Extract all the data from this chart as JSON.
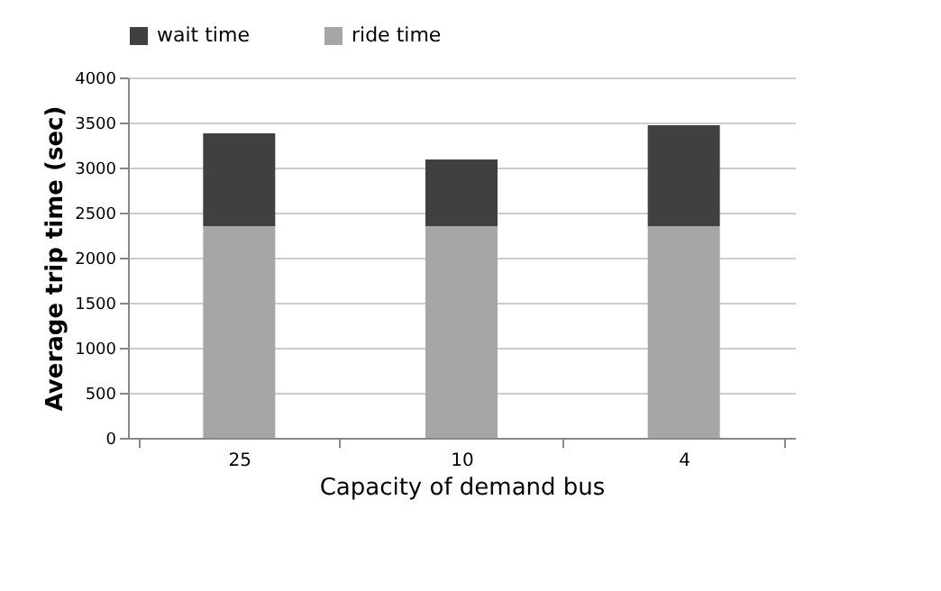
{
  "chart_data": {
    "type": "bar",
    "stacked": true,
    "xlabel": "Capacity of demand bus",
    "ylabel": "Average trip time (sec)",
    "categories": [
      "25",
      "10",
      "4"
    ],
    "series": [
      {
        "name": "ride time",
        "color": "#a6a6a6",
        "values": [
          2350,
          2350,
          2350
        ]
      },
      {
        "name": "wait time",
        "color": "#404040",
        "values": [
          1030,
          740,
          1120
        ]
      }
    ],
    "ylim": [
      0,
      4000
    ],
    "yticks": [
      0,
      500,
      1000,
      1500,
      2000,
      2500,
      3000,
      3500,
      4000
    ],
    "grid": "y",
    "legend": "top"
  }
}
